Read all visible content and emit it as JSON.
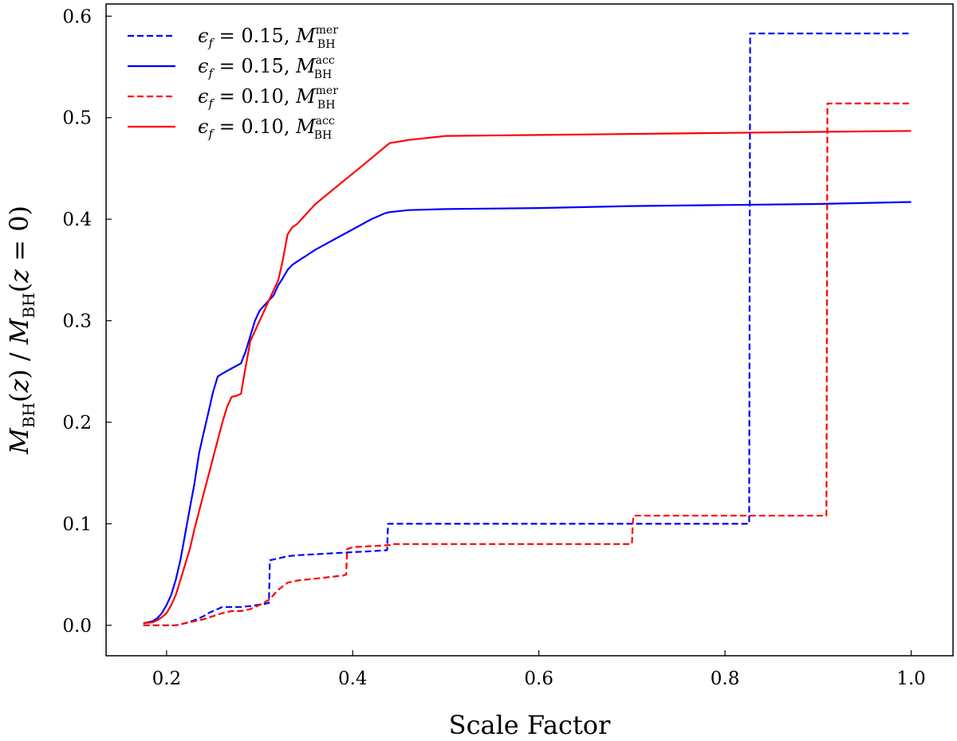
{
  "chart_data": {
    "type": "line",
    "title": "",
    "xlabel": "Scale Factor",
    "ylabel": "M_BH(z) / M_BH(z = 0)",
    "xlim": [
      0.135,
      1.045
    ],
    "ylim": [
      -0.03,
      0.612
    ],
    "xticks": [
      0.2,
      0.4,
      0.6,
      0.8,
      1.0
    ],
    "xtick_labels": [
      "0.2",
      "0.4",
      "0.6",
      "0.8",
      "1.0"
    ],
    "yticks": [
      0.0,
      0.1,
      0.2,
      0.3,
      0.4,
      0.5,
      0.6
    ],
    "ytick_labels": [
      "0.0",
      "0.1",
      "0.2",
      "0.3",
      "0.4",
      "0.5",
      "0.6"
    ],
    "grid": false,
    "legend_position": "top-left",
    "series": [
      {
        "name": "εf = 0.15, M_BH^mer",
        "label_main": "ϵ",
        "label_eps_sub": "f",
        "label_value": " = 0.15, ",
        "label_m": "M",
        "label_sup": "mer",
        "label_sub": "BH",
        "color": "#0000ff",
        "style": "dashed",
        "x": [
          0.175,
          0.21,
          0.22,
          0.23,
          0.24,
          0.245,
          0.25,
          0.255,
          0.26,
          0.28,
          0.29,
          0.305,
          0.31,
          0.311,
          0.33,
          0.34,
          0.36,
          0.38,
          0.4,
          0.42,
          0.437,
          0.438,
          0.5,
          0.6,
          0.7,
          0.8,
          0.826,
          0.827,
          0.9,
          1.0
        ],
        "y": [
          0.0,
          0.0,
          0.002,
          0.005,
          0.009,
          0.012,
          0.014,
          0.016,
          0.018,
          0.018,
          0.019,
          0.021,
          0.022,
          0.064,
          0.068,
          0.069,
          0.07,
          0.071,
          0.072,
          0.073,
          0.074,
          0.1,
          0.1,
          0.1,
          0.1,
          0.1,
          0.1,
          0.583,
          0.583,
          0.583
        ]
      },
      {
        "name": "εf = 0.15, M_BH^acc",
        "label_main": "ϵ",
        "label_eps_sub": "f",
        "label_value": " = 0.15, ",
        "label_m": "M",
        "label_sup": "acc",
        "label_sub": "BH",
        "color": "#0000ff",
        "style": "solid",
        "x": [
          0.175,
          0.185,
          0.19,
          0.195,
          0.2,
          0.205,
          0.21,
          0.215,
          0.22,
          0.225,
          0.23,
          0.235,
          0.24,
          0.245,
          0.25,
          0.255,
          0.26,
          0.27,
          0.28,
          0.285,
          0.29,
          0.295,
          0.3,
          0.305,
          0.31,
          0.315,
          0.32,
          0.325,
          0.33,
          0.335,
          0.34,
          0.35,
          0.36,
          0.38,
          0.4,
          0.42,
          0.435,
          0.44,
          0.46,
          0.5,
          0.6,
          0.7,
          0.8,
          0.9,
          1.0
        ],
        "y": [
          0.002,
          0.004,
          0.007,
          0.012,
          0.02,
          0.03,
          0.045,
          0.065,
          0.09,
          0.115,
          0.14,
          0.17,
          0.19,
          0.21,
          0.23,
          0.245,
          0.248,
          0.253,
          0.258,
          0.27,
          0.285,
          0.3,
          0.31,
          0.315,
          0.32,
          0.325,
          0.335,
          0.342,
          0.35,
          0.355,
          0.358,
          0.364,
          0.37,
          0.38,
          0.39,
          0.4,
          0.406,
          0.407,
          0.409,
          0.41,
          0.411,
          0.413,
          0.414,
          0.415,
          0.417
        ]
      },
      {
        "name": "εf = 0.10, M_BH^mer",
        "label_main": "ϵ",
        "label_eps_sub": "f",
        "label_value": " = 0.10, ",
        "label_m": "M",
        "label_sup": "mer",
        "label_sub": "BH",
        "color": "#ff0000",
        "style": "dashed",
        "x": [
          0.175,
          0.21,
          0.22,
          0.23,
          0.24,
          0.25,
          0.26,
          0.27,
          0.28,
          0.29,
          0.3,
          0.31,
          0.32,
          0.33,
          0.34,
          0.36,
          0.38,
          0.39,
          0.393,
          0.394,
          0.4,
          0.42,
          0.44,
          0.441,
          0.5,
          0.6,
          0.7,
          0.701,
          0.702,
          0.8,
          0.9,
          0.909,
          0.91,
          1.0
        ],
        "y": [
          0.0,
          0.0,
          0.002,
          0.004,
          0.006,
          0.009,
          0.012,
          0.014,
          0.014,
          0.016,
          0.02,
          0.025,
          0.035,
          0.042,
          0.044,
          0.046,
          0.048,
          0.049,
          0.05,
          0.075,
          0.077,
          0.078,
          0.079,
          0.08,
          0.08,
          0.08,
          0.08,
          0.102,
          0.108,
          0.108,
          0.108,
          0.108,
          0.514,
          0.514
        ]
      },
      {
        "name": "εf = 0.10, M_BH^acc",
        "label_main": "ϵ",
        "label_eps_sub": "f",
        "label_value": " = 0.10, ",
        "label_m": "M",
        "label_sup": "acc",
        "label_sub": "BH",
        "color": "#ff0000",
        "style": "solid",
        "x": [
          0.175,
          0.185,
          0.19,
          0.195,
          0.2,
          0.205,
          0.21,
          0.215,
          0.22,
          0.225,
          0.23,
          0.24,
          0.25,
          0.26,
          0.265,
          0.27,
          0.275,
          0.28,
          0.285,
          0.29,
          0.295,
          0.3,
          0.305,
          0.31,
          0.315,
          0.32,
          0.325,
          0.33,
          0.335,
          0.34,
          0.35,
          0.36,
          0.38,
          0.4,
          0.42,
          0.437,
          0.44,
          0.46,
          0.48,
          0.5,
          0.6,
          0.7,
          0.8,
          0.9,
          1.0
        ],
        "y": [
          0.002,
          0.003,
          0.005,
          0.008,
          0.012,
          0.02,
          0.03,
          0.045,
          0.06,
          0.075,
          0.095,
          0.13,
          0.165,
          0.2,
          0.215,
          0.225,
          0.226,
          0.228,
          0.255,
          0.28,
          0.29,
          0.3,
          0.31,
          0.32,
          0.33,
          0.34,
          0.36,
          0.385,
          0.392,
          0.395,
          0.405,
          0.415,
          0.43,
          0.445,
          0.46,
          0.473,
          0.475,
          0.478,
          0.48,
          0.482,
          0.483,
          0.484,
          0.485,
          0.486,
          0.487
        ]
      }
    ]
  }
}
